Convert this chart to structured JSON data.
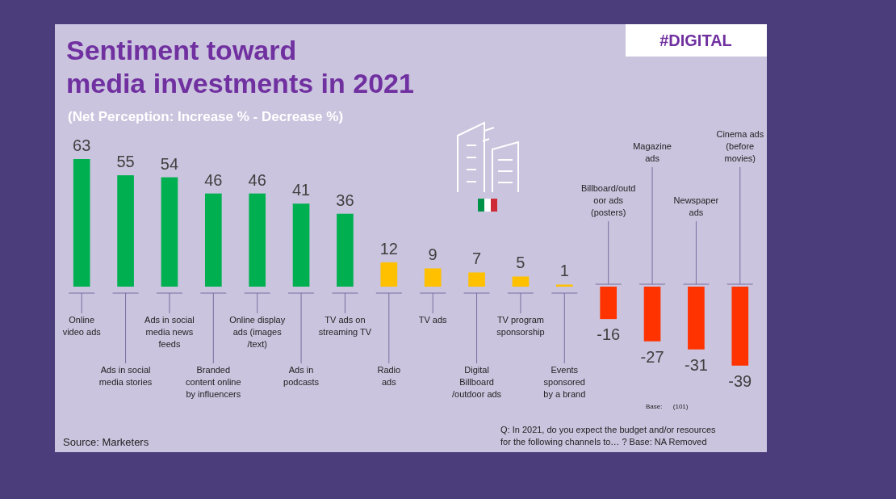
{
  "chart_data": {
    "type": "bar",
    "title": "Sentiment toward\nmedia investments in 2021",
    "subtitle": "(Net Perception: Increase % - Decrease %)",
    "categories": [
      "Online\nvideo ads",
      "Ads in social\nmedia stories",
      "Ads in social\nmedia news\nfeeds",
      "Branded\ncontent online\nby influencers",
      "Online display\nads (images\n/text)",
      "Ads in\npodcasts",
      "TV ads on\nstreaming TV",
      "Radio\nads",
      "TV ads",
      "Digital\nBillboard\n/outdoor ads",
      "TV program\nsponsorship",
      "Events\nsponsored\nby a brand",
      "Billboard/outd\noor ads\n(posters)",
      "Magazine\nads",
      "Newspaper\nads",
      "Cinema ads\n(before\nmovies)"
    ],
    "values": [
      63,
      55,
      54,
      46,
      46,
      41,
      36,
      12,
      9,
      7,
      5,
      1,
      -16,
      -27,
      -31,
      -39
    ],
    "colors": [
      "#00b050",
      "#00b050",
      "#00b050",
      "#00b050",
      "#00b050",
      "#00b050",
      "#00b050",
      "#ffc000",
      "#ffc000",
      "#ffc000",
      "#ffc000",
      "#ffc000",
      "#ff3300",
      "#ff3300",
      "#ff3300",
      "#ff3300"
    ],
    "data_labels": true,
    "annotations": [
      "#DIGITAL",
      "Source: Marketers",
      "Base:      (101)",
      "Q: In 2021, do you expect the budget and/or resources\nfor the following channels to… ? Base: NA Removed"
    ]
  }
}
